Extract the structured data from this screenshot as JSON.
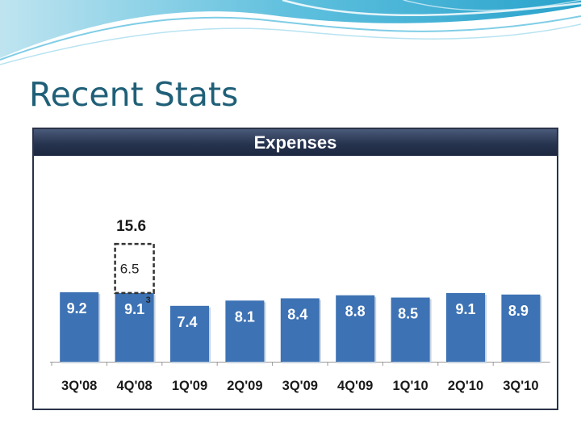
{
  "slide": {
    "title": "Recent Stats"
  },
  "chart_data": {
    "type": "bar",
    "title": "Expenses",
    "categories": [
      "3Q'08",
      "4Q'08",
      "1Q'09",
      "2Q'09",
      "3Q'09",
      "4Q'09",
      "1Q'10",
      "2Q'10",
      "3Q'10"
    ],
    "values": [
      9.2,
      9.1,
      7.4,
      8.1,
      8.4,
      8.8,
      8.5,
      9.1,
      8.9
    ],
    "value_labels": [
      "9.2",
      "9.1",
      "7.4",
      "8.1",
      "8.4",
      "8.8",
      "8.5",
      "9.1",
      "8.9"
    ],
    "stacked_extra": {
      "category": "4Q'08",
      "value": 6.5,
      "label": "6.5",
      "total": 15.6,
      "total_label": "15.6",
      "footnote": "3",
      "style": "dashed-outline"
    },
    "bar_color": "#3d72b4",
    "xlabel": "",
    "ylabel": "",
    "ylim": [
      0,
      16
    ],
    "grid": false,
    "legend": "none"
  }
}
